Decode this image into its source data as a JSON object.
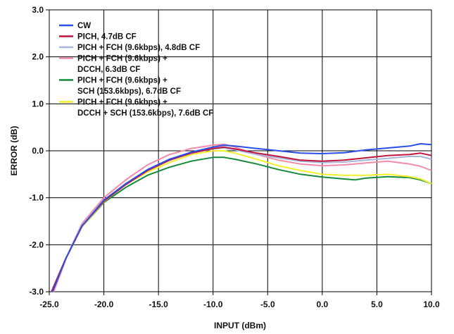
{
  "chart_data": {
    "type": "line",
    "xlabel": "INPUT (dBm)",
    "ylabel": "ERROR (dB)",
    "xlim": [
      -25,
      10
    ],
    "ylim": [
      -3,
      3
    ],
    "grid": "on",
    "legend_position": "top-left",
    "x_ticks": [
      "-25.0",
      "-20.0",
      "-15.0",
      "-10.0",
      "-5.0",
      "0.0",
      "5.0",
      "10.0"
    ],
    "y_ticks": [
      "3.0",
      "2.0",
      "1.0",
      "0.0",
      "-1.0",
      "-2.0",
      "-3.0"
    ],
    "x_tick_values": [
      -25,
      -20,
      -15,
      -10,
      -5,
      0,
      5,
      10
    ],
    "y_tick_values": [
      3,
      2,
      1,
      0,
      -1,
      -2,
      -3
    ],
    "series": [
      {
        "name": "CW",
        "legend_lines": [
          "CW"
        ],
        "color": "#2a4ee8",
        "points": [
          [
            -24.7,
            -3.0
          ],
          [
            -23.5,
            -2.3
          ],
          [
            -22,
            -1.6
          ],
          [
            -20,
            -1.05
          ],
          [
            -18,
            -0.7
          ],
          [
            -16,
            -0.4
          ],
          [
            -14,
            -0.18
          ],
          [
            -12,
            -0.03
          ],
          [
            -10,
            0.08
          ],
          [
            -9,
            0.12
          ],
          [
            -8,
            0.1
          ],
          [
            -6,
            0.05
          ],
          [
            -4,
            0.0
          ],
          [
            -2,
            -0.05
          ],
          [
            0,
            -0.06
          ],
          [
            2,
            -0.04
          ],
          [
            4,
            0.02
          ],
          [
            6,
            0.06
          ],
          [
            8,
            0.1
          ],
          [
            9,
            0.15
          ],
          [
            10,
            0.13
          ]
        ]
      },
      {
        "name": "PICH, 4.7dB CF",
        "legend_lines": [
          "PICH, 4.7dB CF"
        ],
        "color": "#c0143c",
        "points": [
          [
            -24.8,
            -3.0
          ],
          [
            -23.5,
            -2.3
          ],
          [
            -22,
            -1.6
          ],
          [
            -20,
            -1.07
          ],
          [
            -18,
            -0.72
          ],
          [
            -16,
            -0.42
          ],
          [
            -14,
            -0.2
          ],
          [
            -12,
            -0.05
          ],
          [
            -10,
            0.05
          ],
          [
            -9,
            0.08
          ],
          [
            -8,
            0.04
          ],
          [
            -6,
            -0.05
          ],
          [
            -4,
            -0.12
          ],
          [
            -2,
            -0.2
          ],
          [
            0,
            -0.22
          ],
          [
            2,
            -0.2
          ],
          [
            4,
            -0.15
          ],
          [
            6,
            -0.1
          ],
          [
            8,
            -0.08
          ],
          [
            9,
            -0.05
          ],
          [
            10,
            -0.1
          ]
        ]
      },
      {
        "name": "PICH + FCH (9.6kbps), 4.8dB CF",
        "legend_lines": [
          "PICH + FCH (9.6kbps), 4.8dB CF"
        ],
        "color": "#a8b4d8",
        "points": [
          [
            -24.8,
            -3.0
          ],
          [
            -23.5,
            -2.3
          ],
          [
            -22,
            -1.6
          ],
          [
            -20,
            -1.07
          ],
          [
            -18,
            -0.72
          ],
          [
            -16,
            -0.42
          ],
          [
            -14,
            -0.2
          ],
          [
            -12,
            -0.05
          ],
          [
            -10,
            0.04
          ],
          [
            -9,
            0.06
          ],
          [
            -8,
            0.02
          ],
          [
            -6,
            -0.08
          ],
          [
            -4,
            -0.15
          ],
          [
            -2,
            -0.22
          ],
          [
            0,
            -0.25
          ],
          [
            2,
            -0.24
          ],
          [
            4,
            -0.2
          ],
          [
            6,
            -0.16
          ],
          [
            8,
            -0.12
          ],
          [
            9,
            -0.12
          ],
          [
            10,
            -0.18
          ]
        ]
      },
      {
        "name": "PICH + FCH (9.6kbps) + DCCH, 6.3dB CF",
        "legend_lines": [
          "PICH + FCH (9.6kbps) +",
          "DCCH, 6.3dB CF"
        ],
        "color": "#f28aaa",
        "points": [
          [
            -24.6,
            -3.0
          ],
          [
            -23.3,
            -2.2
          ],
          [
            -22,
            -1.55
          ],
          [
            -20,
            -1.0
          ],
          [
            -18,
            -0.62
          ],
          [
            -16,
            -0.3
          ],
          [
            -14,
            -0.08
          ],
          [
            -12,
            0.05
          ],
          [
            -10,
            0.12
          ],
          [
            -9,
            0.14
          ],
          [
            -8,
            0.08
          ],
          [
            -6,
            -0.08
          ],
          [
            -4,
            -0.2
          ],
          [
            -2,
            -0.28
          ],
          [
            0,
            -0.32
          ],
          [
            2,
            -0.3
          ],
          [
            4,
            -0.26
          ],
          [
            6,
            -0.22
          ],
          [
            8,
            -0.28
          ],
          [
            9,
            -0.33
          ],
          [
            10,
            -0.42
          ]
        ]
      },
      {
        "name": "PICH + FCH (9.6kbps) + SCH (153.6kbps), 6.7dB CF",
        "legend_lines": [
          "PICH + FCH (9.6kbps) +",
          "SCH (153.6kbps), 6.7dB CF"
        ],
        "color": "#168a3c",
        "points": [
          [
            -24.8,
            -3.0
          ],
          [
            -23.5,
            -2.3
          ],
          [
            -22,
            -1.62
          ],
          [
            -20,
            -1.1
          ],
          [
            -18,
            -0.78
          ],
          [
            -16,
            -0.52
          ],
          [
            -14,
            -0.35
          ],
          [
            -12,
            -0.22
          ],
          [
            -10,
            -0.14
          ],
          [
            -9,
            -0.14
          ],
          [
            -8,
            -0.18
          ],
          [
            -6,
            -0.28
          ],
          [
            -4,
            -0.4
          ],
          [
            -2,
            -0.5
          ],
          [
            0,
            -0.56
          ],
          [
            2,
            -0.6
          ],
          [
            3,
            -0.62
          ],
          [
            4,
            -0.58
          ],
          [
            6,
            -0.55
          ],
          [
            8,
            -0.57
          ],
          [
            9,
            -0.62
          ],
          [
            10,
            -0.7
          ]
        ]
      },
      {
        "name": "PICH + FCH (9.6kbps) + DCCH + SCH (153.6kbps), 7.6dB CF",
        "legend_lines": [
          "PICH + FCH (9.6kbps) +",
          "DCCH + SCH (153.6kbps), 7.6dB CF"
        ],
        "color": "#f2ee2a",
        "points": [
          [
            -24.8,
            -3.0
          ],
          [
            -23.5,
            -2.3
          ],
          [
            -22,
            -1.62
          ],
          [
            -20,
            -1.08
          ],
          [
            -18,
            -0.72
          ],
          [
            -16,
            -0.45
          ],
          [
            -14,
            -0.25
          ],
          [
            -12,
            -0.08
          ],
          [
            -10,
            0.0
          ],
          [
            -9,
            0.0
          ],
          [
            -8,
            -0.05
          ],
          [
            -6,
            -0.18
          ],
          [
            -4,
            -0.32
          ],
          [
            -2,
            -0.42
          ],
          [
            0,
            -0.5
          ],
          [
            2,
            -0.52
          ],
          [
            4,
            -0.52
          ],
          [
            6,
            -0.5
          ],
          [
            8,
            -0.55
          ],
          [
            9,
            -0.6
          ],
          [
            10,
            -0.7
          ]
        ]
      }
    ]
  }
}
